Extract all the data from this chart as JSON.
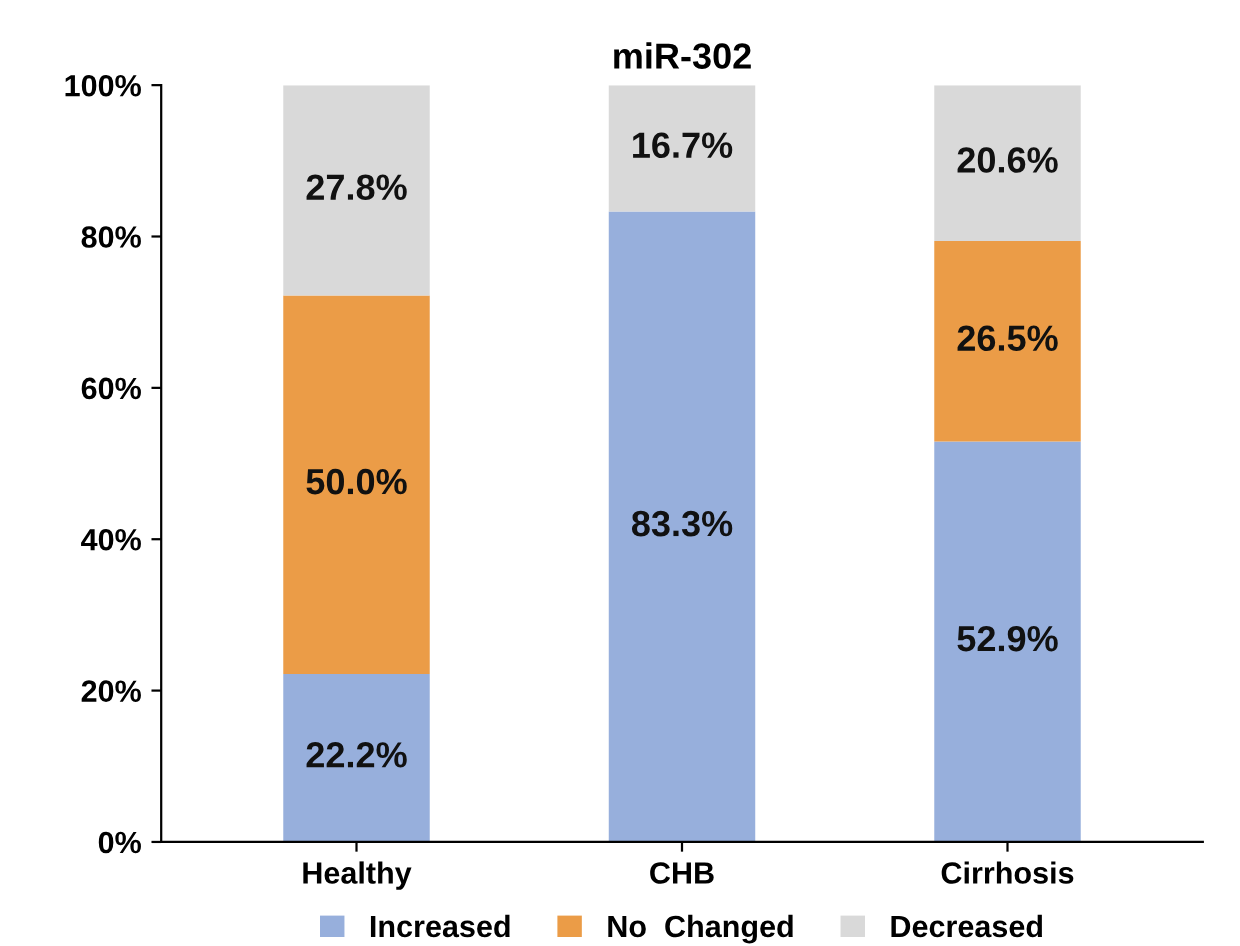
{
  "chart_data": {
    "type": "bar",
    "title": "miR-302",
    "stacked": true,
    "categories": [
      "Healthy",
      "CHB",
      "Cirrhosis"
    ],
    "series": [
      {
        "name": "Increased",
        "color": "#97afdc",
        "values": [
          22.2,
          83.3,
          52.9
        ],
        "value_labels": [
          "22.2%",
          "83.3%",
          "52.9%"
        ]
      },
      {
        "name": "No  Changed",
        "color": "#eb9c47",
        "values": [
          50.0,
          0,
          26.5
        ],
        "value_labels": [
          "50.0%",
          null,
          "26.5%"
        ]
      },
      {
        "name": "Decreased",
        "color": "#d9d9d9",
        "values": [
          27.8,
          16.7,
          20.6
        ],
        "value_labels": [
          "27.8%",
          "16.7%",
          "20.6%"
        ]
      }
    ],
    "ylim": [
      0,
      100
    ],
    "yticks": [
      {
        "value": 0,
        "label": "0%"
      },
      {
        "value": 20,
        "label": "20%"
      },
      {
        "value": 40,
        "label": "40%"
      },
      {
        "value": 60,
        "label": "60%"
      },
      {
        "value": 80,
        "label": "80%"
      },
      {
        "value": 100,
        "label": "100%"
      }
    ],
    "grid": false,
    "legend": "bottom"
  }
}
